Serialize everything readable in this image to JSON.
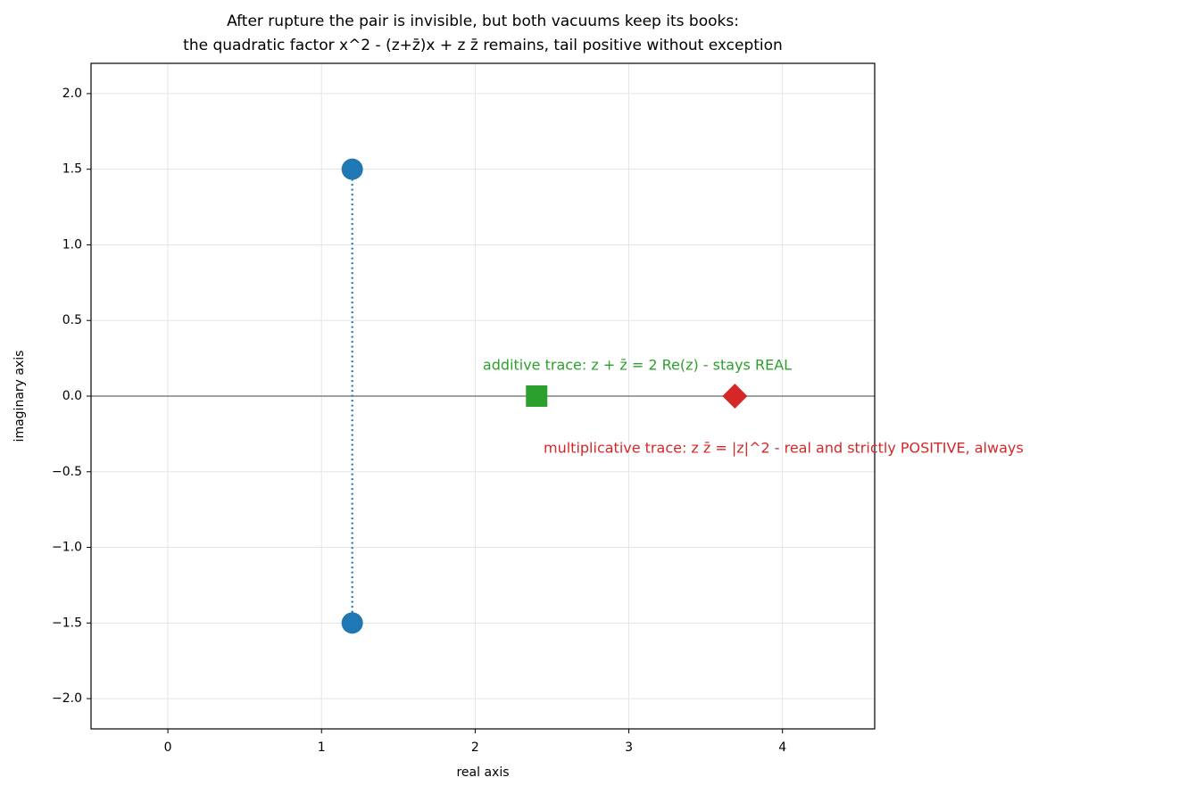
{
  "chart_data": {
    "type": "scatter",
    "title": [
      "After rupture the pair is invisible, but both vacuums keep its books:",
      "the quadratic factor x^2 - (z+z̄)x + z z̄ remains, tail positive without exception"
    ],
    "x_label": "real axis",
    "y_label": "imaginary axis",
    "xlim": [
      -0.5,
      4.6
    ],
    "ylim": [
      -2.2,
      2.2
    ],
    "xticks": [
      0,
      1,
      2,
      3,
      4
    ],
    "yticks": [
      {
        "value": -2,
        "label": "−2.0"
      },
      {
        "value": -1.5,
        "label": "−1.5"
      },
      {
        "value": -1,
        "label": "−1.0"
      },
      {
        "value": -0.5,
        "label": "−0.5"
      },
      {
        "value": 0,
        "label": "0.0"
      },
      0.5,
      {
        "value": 1,
        "label": "1.0"
      },
      1.5,
      {
        "value": 2,
        "label": "2.0"
      }
    ],
    "grid": true,
    "axhline": 0,
    "series": [
      {
        "color": "#1f77b4",
        "marker": "circle",
        "connect": "dotted",
        "x": [
          1.2,
          1.2
        ],
        "values": [
          1.5,
          -1.5
        ]
      },
      {
        "color": "#2ca02c",
        "marker": "square",
        "x": [
          2.4
        ],
        "values": [
          0
        ]
      },
      {
        "color": "#d62728",
        "marker": "diamond",
        "x": [
          3.69
        ],
        "values": [
          0
        ]
      }
    ],
    "annotations": [
      {
        "text": "additive trace: z + z̄ = 2 Re(z) - stays REAL",
        "color": "#2ca02c"
      },
      {
        "text": "multiplicative trace: z z̄ = |z|^2 - real and strictly POSITIVE, always",
        "color": "#d62728"
      }
    ]
  }
}
